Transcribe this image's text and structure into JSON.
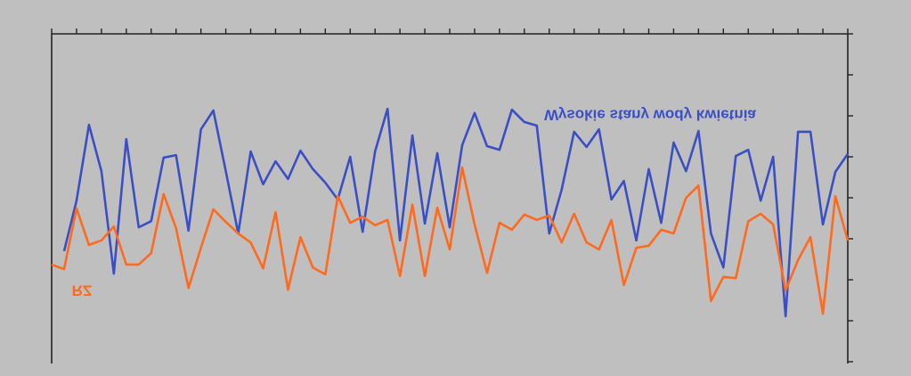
{
  "chart_data": {
    "type": "line",
    "x": [
      0,
      1,
      2,
      3,
      4,
      5,
      6,
      7,
      8,
      9,
      10,
      11,
      12,
      13,
      14,
      15,
      16,
      17,
      18,
      19,
      20,
      21,
      22,
      23,
      24,
      25,
      26,
      27,
      28,
      29,
      30,
      31,
      32,
      33,
      34,
      35,
      36,
      37,
      38,
      39,
      40,
      41,
      42,
      43,
      44,
      45,
      46,
      47,
      48,
      49,
      50,
      51,
      52,
      53,
      54,
      55,
      56,
      57,
      58,
      59,
      60,
      61,
      62,
      63,
      64
    ],
    "xlim": [
      0,
      64
    ],
    "xticks": [
      0,
      2,
      4,
      6,
      8,
      10,
      12,
      14,
      16,
      18,
      20,
      22,
      24,
      26,
      28,
      30,
      32,
      34,
      36,
      38,
      40,
      42,
      44,
      46,
      48,
      50,
      52,
      54,
      56,
      58,
      60,
      62,
      64
    ],
    "ylim": [
      0,
      8
    ],
    "yticks": [
      0,
      1,
      2,
      3,
      4,
      5,
      6,
      7,
      8
    ],
    "series": [
      {
        "name": "Wysokie stany wody kwietnia",
        "color": "#3a4fc4",
        "values": [
          null,
          5.3,
          4.07,
          2.22,
          3.35,
          5.85,
          2.57,
          4.72,
          4.57,
          3.02,
          2.96,
          4.8,
          2.33,
          1.87,
          3.35,
          4.87,
          2.87,
          3.67,
          3.11,
          3.54,
          2.85,
          3.3,
          3.63,
          4.04,
          3.0,
          4.83,
          2.87,
          1.83,
          5.04,
          2.48,
          4.63,
          2.91,
          4.72,
          2.72,
          1.93,
          2.74,
          2.83,
          1.85,
          2.15,
          2.24,
          4.87,
          3.8,
          2.39,
          2.76,
          2.33,
          4.04,
          3.59,
          5.04,
          3.3,
          4.61,
          2.65,
          3.35,
          2.37,
          4.87,
          5.7,
          2.98,
          2.83,
          4.07,
          3.0,
          6.89,
          2.39,
          2.39,
          4.65,
          3.37,
          2.93
        ]
      },
      {
        "name": "RZ",
        "color": "#ff6a1e",
        "values": [
          5.63,
          5.74,
          4.26,
          5.15,
          5.04,
          4.7,
          5.63,
          5.63,
          5.35,
          3.91,
          4.74,
          6.2,
          5.22,
          4.28,
          4.59,
          4.87,
          5.09,
          5.72,
          4.35,
          6.24,
          4.96,
          5.7,
          5.87,
          3.96,
          4.61,
          4.46,
          4.67,
          4.54,
          5.91,
          4.17,
          5.91,
          4.24,
          5.26,
          3.26,
          4.65,
          5.83,
          4.61,
          4.78,
          4.41,
          4.54,
          4.43,
          5.09,
          4.39,
          5.09,
          5.26,
          4.54,
          6.13,
          5.22,
          5.17,
          4.78,
          4.87,
          4.0,
          3.7,
          6.52,
          5.93,
          5.96,
          4.57,
          4.39,
          4.65,
          6.26,
          5.52,
          4.96,
          6.83,
          3.96,
          5.04
        ]
      }
    ]
  }
}
